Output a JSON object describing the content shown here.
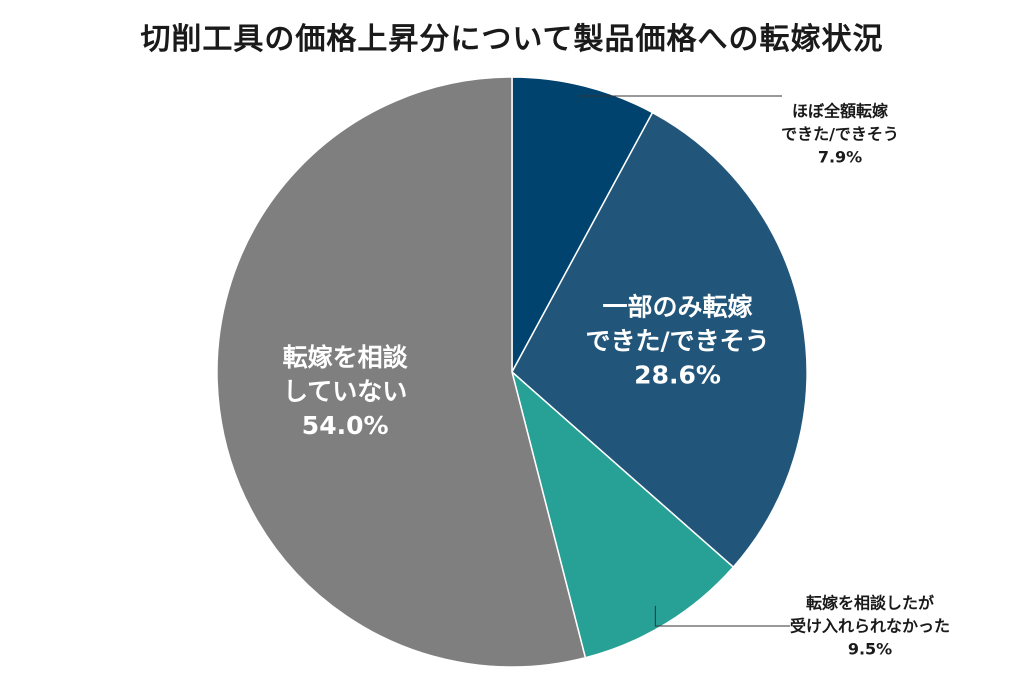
{
  "chart_data": {
    "type": "pie",
    "title": "切削工具の価格上昇分について製品価格への転嫁状況",
    "unit": "%",
    "slices": [
      {
        "lines": [
          "ほぼ全額転嫁",
          "できた/できそう"
        ],
        "value": 7.9,
        "value_label": "7.9%",
        "color": "#00436e",
        "label_position": "outside"
      },
      {
        "lines": [
          "一部のみ転嫁",
          "できた/できそう"
        ],
        "value": 28.6,
        "value_label": "28.6%",
        "color": "#21567a",
        "label_position": "inside"
      },
      {
        "lines": [
          "転嫁を相談したが",
          "受け入れられなかった"
        ],
        "value": 9.5,
        "value_label": "9.5%",
        "color": "#27a096",
        "label_position": "outside"
      },
      {
        "lines": [
          "転嫁を相談",
          "していない"
        ],
        "value": 54.0,
        "value_label": "54.0%",
        "color": "#7f7f7f",
        "label_position": "inside"
      }
    ]
  }
}
